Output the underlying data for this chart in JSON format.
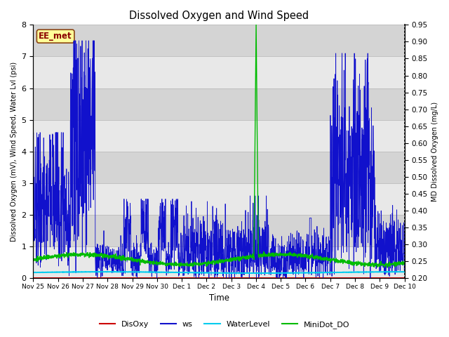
{
  "title": "Dissolved Oxygen and Wind Speed",
  "ylabel_left": "Dissolved Oxygen (mV), Wind Speed, Water Lvl (psi)",
  "ylabel_right": "MD Dissolved Oxygen (mg/L)",
  "xlabel": "Time",
  "annotation": "EE_met",
  "ylim_left": [
    0.0,
    8.0
  ],
  "ylim_right": [
    0.2,
    0.95
  ],
  "x_tick_labels": [
    "Nov 25",
    "Nov 26",
    "Nov 27",
    "Nov 28",
    "Nov 29",
    "Nov 30",
    "Dec 1",
    "Dec 2",
    "Dec 3",
    "Dec 4",
    "Dec 5",
    "Dec 6",
    "Dec 7",
    "Dec 8",
    "Dec 9",
    "Dec 10"
  ],
  "colors": {
    "disoxy": "#cc0000",
    "ws": "#1111cc",
    "waterlevel": "#00ccee",
    "minidot": "#00bb00",
    "background_light": "#e8e8e8",
    "background_dark": "#d4d4d4",
    "grid_line": "#c0c0c0"
  },
  "legend_labels": [
    "DisOxy",
    "ws",
    "WaterLevel",
    "MiniDot_DO"
  ],
  "n_points": 2000,
  "band_yticks": [
    0.0,
    1.0,
    2.0,
    3.0,
    4.0,
    5.0,
    6.0,
    7.0,
    8.0
  ],
  "right_yticks": [
    0.2,
    0.25,
    0.3,
    0.35,
    0.4,
    0.45,
    0.5,
    0.55,
    0.6,
    0.65,
    0.7,
    0.75,
    0.8,
    0.85,
    0.9,
    0.95
  ]
}
